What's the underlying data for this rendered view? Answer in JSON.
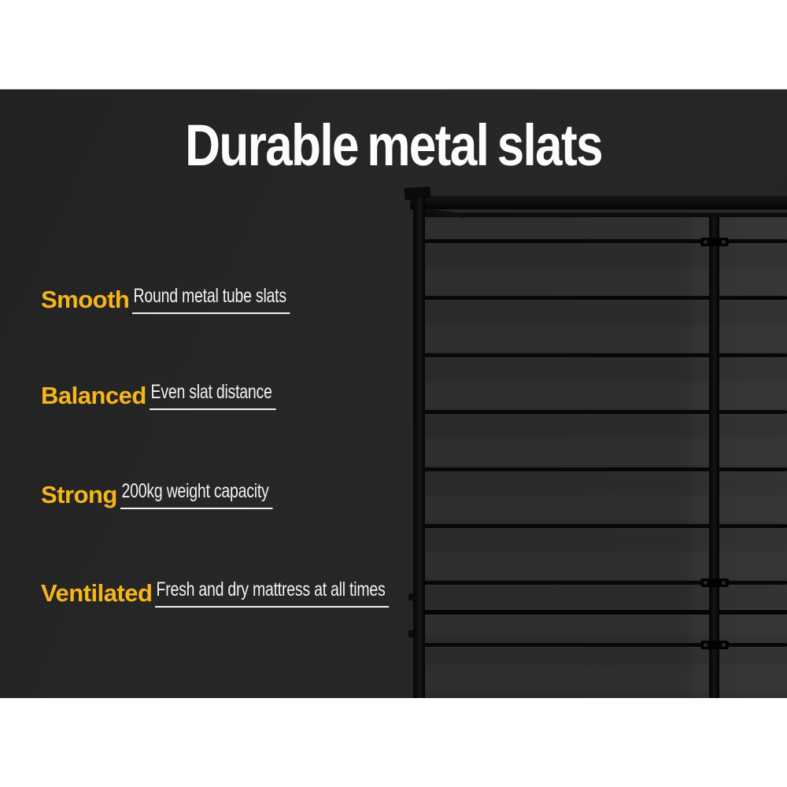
{
  "title": "Durable metal slats",
  "features": [
    {
      "label": "Smooth",
      "description": "Round metal tube slats"
    },
    {
      "label": "Balanced",
      "description": "Even slat distance"
    },
    {
      "label": "Strong",
      "description": "200kg weight capacity"
    },
    {
      "label": "Ventilated",
      "description": "Fresh and dry mattress at all times"
    }
  ],
  "image": {
    "alt": "Black metal bed base with evenly spaced round tube slats, left corner post and centre support rail with slat joints"
  },
  "colors": {
    "accent_yellow": "#f6b51a",
    "background_dark": "#252525",
    "band_white": "#ffffff",
    "text_white": "#f2f2f2",
    "frame_black": "#0a0a0a"
  }
}
